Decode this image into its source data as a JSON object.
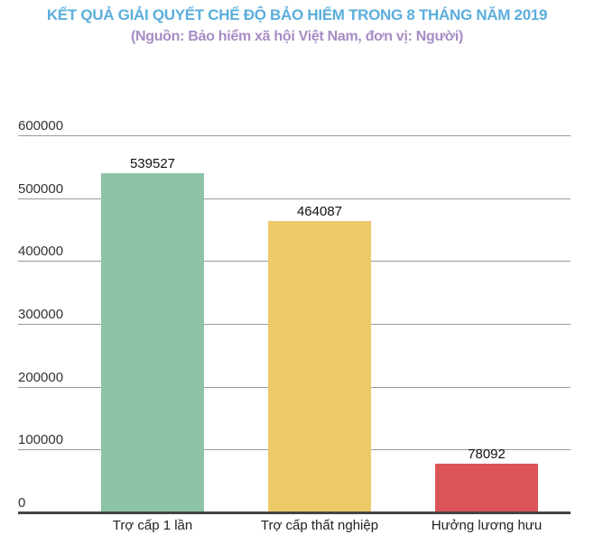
{
  "header": {
    "title": "KẾT QUẢ GIẢI QUYẾT CHẾ ĐỘ BẢO HIỂM TRONG 8 THÁNG NĂM 2019",
    "subtitle": "(Nguồn: Bảo hiểm xã hội Việt Nam, đơn vị: Người)",
    "title_color": "#5aaedc",
    "subtitle_color": "#a68cc4"
  },
  "axis": {
    "yticks": [
      "0",
      "100000",
      "200000",
      "300000",
      "400000",
      "500000",
      "600000"
    ]
  },
  "bars": [
    {
      "label": "Trợ cấp 1 lần",
      "value_label": "539527",
      "color": "#8ec3a8"
    },
    {
      "label": "Trợ cấp thất nghiệp",
      "value_label": "464087",
      "color": "#edc96a"
    },
    {
      "label": "Hưởng lương hưu",
      "value_label": "78092",
      "color": "#db5457"
    }
  ],
  "chart_data": {
    "type": "bar",
    "title": "KẾT QUẢ GIẢI QUYẾT CHẾ ĐỘ BẢO HIỂM TRONG 8 THÁNG NĂM 2019",
    "subtitle": "(Nguồn: Bảo hiểm xã hội Việt Nam, đơn vị: Người)",
    "categories": [
      "Trợ cấp 1 lần",
      "Trợ cấp thất nghiệp",
      "Hưởng lương hưu"
    ],
    "values": [
      539527,
      464087,
      78092
    ],
    "colors": [
      "#8ec3a8",
      "#edc96a",
      "#db5457"
    ],
    "xlabel": "",
    "ylabel": "",
    "ylim": [
      0,
      600000
    ],
    "yticks": [
      0,
      100000,
      200000,
      300000,
      400000,
      500000,
      600000
    ],
    "grid": true,
    "legend": "none",
    "data_labels": true
  }
}
